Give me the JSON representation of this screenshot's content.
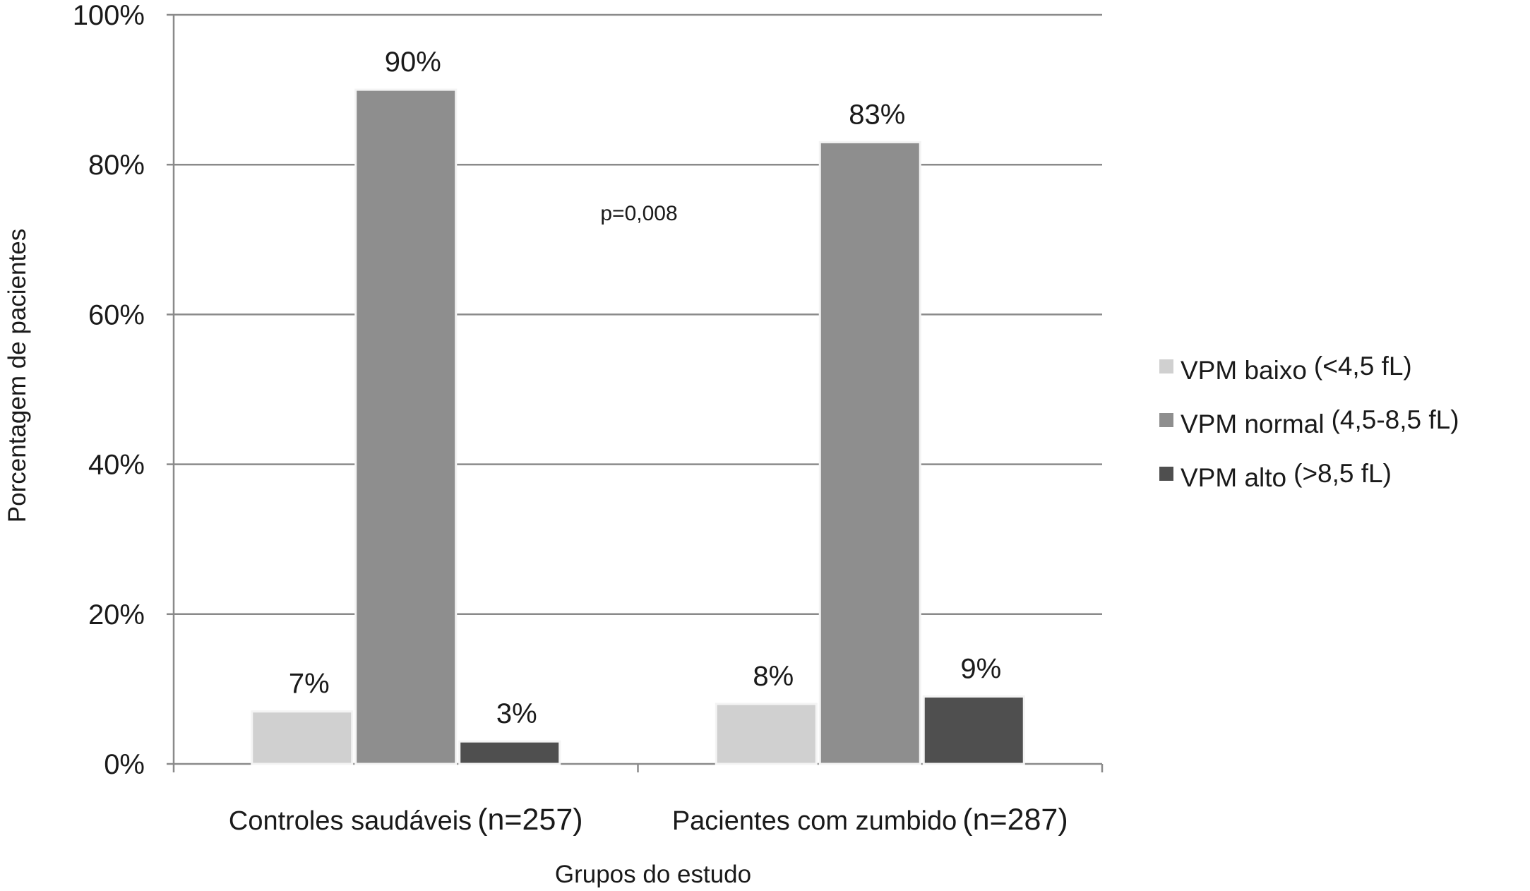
{
  "chart_data": {
    "type": "bar",
    "title": "",
    "xlabel": "Grupos do estudo",
    "ylabel": "Porcentagem de pacientes",
    "ylim": [
      0,
      100
    ],
    "yticks": [
      "0%",
      "20%",
      "40%",
      "60%",
      "80%",
      "100%"
    ],
    "grid": true,
    "legend_position": "right",
    "categories": [
      {
        "name": "Controles saudáveis",
        "n": "(n=257)"
      },
      {
        "name": "Pacientes com zumbido",
        "n": "(n=287)"
      }
    ],
    "series": [
      {
        "name": "VPM baixo",
        "range": "(<4,5 fL)",
        "color": "#d0d0d0",
        "values": [
          7,
          8
        ],
        "labels": [
          "7%",
          "8%"
        ]
      },
      {
        "name": "VPM normal",
        "range": "(4,5-8,5 fL)",
        "color": "#8e8e8e",
        "values": [
          90,
          83
        ],
        "labels": [
          "90%",
          "83%"
        ]
      },
      {
        "name": "VPM alto",
        "range": "(>8,5 fL)",
        "color": "#4f4f4f",
        "values": [
          3,
          9
        ],
        "labels": [
          "3%",
          "9%"
        ]
      }
    ],
    "annotation": "p=0,008"
  }
}
